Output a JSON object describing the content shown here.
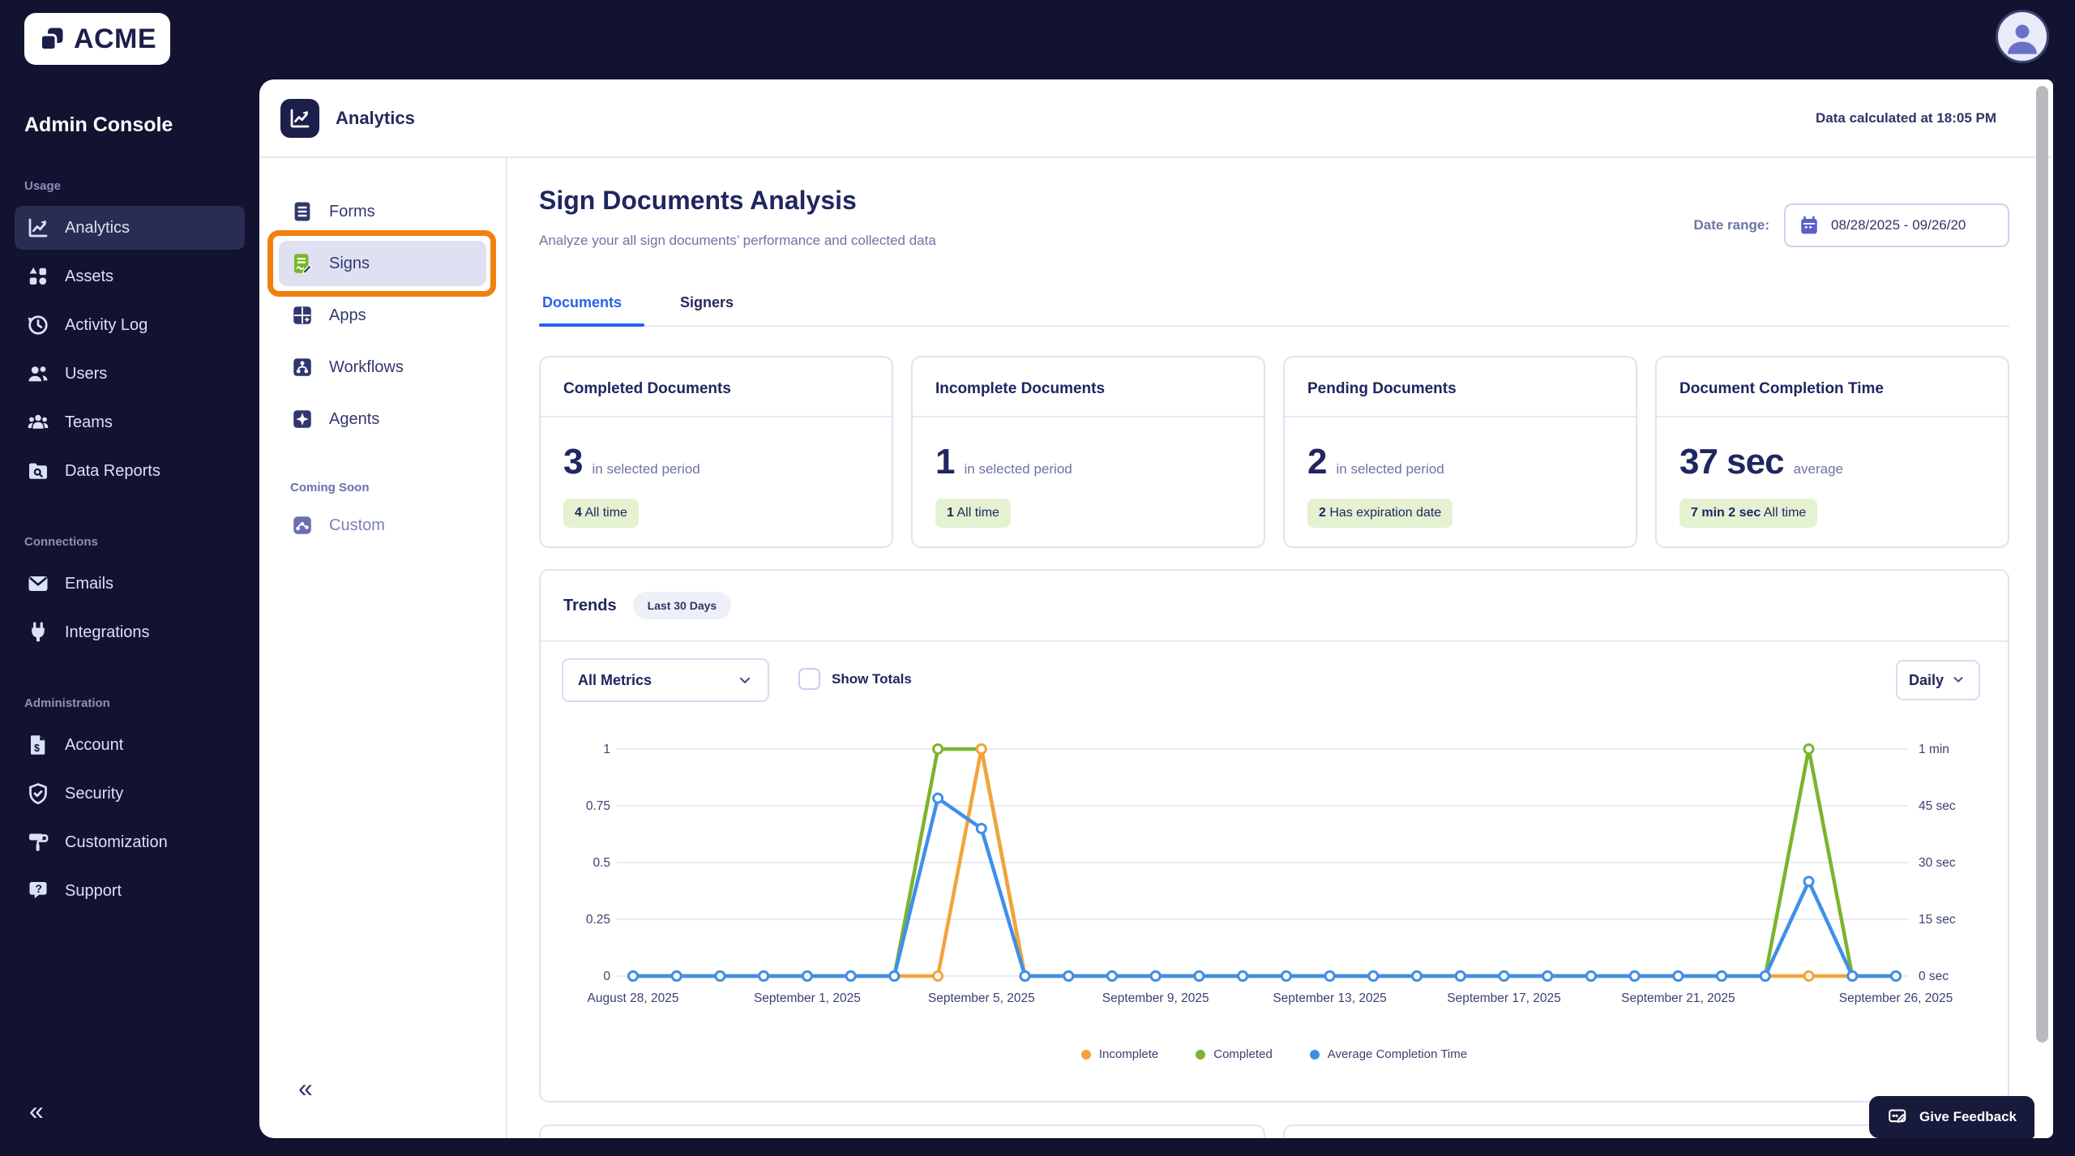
{
  "brand": {
    "name": "ACME"
  },
  "sidebar": {
    "title": "Admin Console",
    "collapse_glyph": "«",
    "sections": [
      {
        "label": "Usage",
        "items": [
          {
            "label": "Analytics",
            "icon": "line-chart",
            "active": true
          },
          {
            "label": "Assets",
            "icon": "shapes"
          },
          {
            "label": "Activity Log",
            "icon": "history-clock"
          },
          {
            "label": "Users",
            "icon": "users"
          },
          {
            "label": "Teams",
            "icon": "team"
          },
          {
            "label": "Data Reports",
            "icon": "folder-search"
          }
        ]
      },
      {
        "label": "Connections",
        "items": [
          {
            "label": "Emails",
            "icon": "envelope"
          },
          {
            "label": "Integrations",
            "icon": "plug"
          }
        ]
      },
      {
        "label": "Administration",
        "items": [
          {
            "label": "Account",
            "icon": "invoice"
          },
          {
            "label": "Security",
            "icon": "shield-check"
          },
          {
            "label": "Customization",
            "icon": "paint-roller"
          },
          {
            "label": "Support",
            "icon": "chat-question"
          }
        ]
      }
    ]
  },
  "window": {
    "header": {
      "title": "Analytics",
      "status": "Data calculated at 18:05 PM"
    },
    "subnav": {
      "items": [
        {
          "label": "Forms"
        },
        {
          "label": "Signs",
          "selected": true,
          "annotated": true
        },
        {
          "label": "Apps"
        },
        {
          "label": "Workflows"
        },
        {
          "label": "Agents"
        }
      ],
      "coming_soon_label": "Coming Soon",
      "coming_soon_items": [
        {
          "label": "Custom"
        }
      ],
      "collapse_glyph": "«"
    }
  },
  "page": {
    "title": "Sign Documents Analysis",
    "subtitle": "Analyze your all sign documents’ performance and collected data",
    "date_range": {
      "label": "Date range:",
      "value": "08/28/2025 - 09/26/20"
    },
    "tabs": [
      {
        "label": "Documents",
        "active": true
      },
      {
        "label": "Signers"
      }
    ]
  },
  "stats": [
    {
      "title": "Completed Documents",
      "value": "3",
      "suffix": "in selected period",
      "badge_strong": "4",
      "badge_rest": "All time"
    },
    {
      "title": "Incomplete Documents",
      "value": "1",
      "suffix": "in selected period",
      "badge_strong": "1",
      "badge_rest": "All time"
    },
    {
      "title": "Pending Documents",
      "value": "2",
      "suffix": "in selected period",
      "badge_strong": "2",
      "badge_rest": "Has expiration date"
    },
    {
      "title": "Document Completion Time",
      "value": "37 sec",
      "suffix": "average",
      "badge_strong": "7 min 2 sec",
      "badge_rest": "All time"
    }
  ],
  "trends": {
    "title": "Trends",
    "period_pill": "Last 30 Days",
    "metric_select": "All Metrics",
    "show_totals": "Show Totals",
    "interval_select": "Daily"
  },
  "chart_data": {
    "type": "line",
    "interval": "Daily",
    "point_count": 30,
    "x_start": "August 28, 2025",
    "x_end": "September 26, 2025",
    "x_ticks": [
      {
        "index": 0,
        "label": "August 28, 2025"
      },
      {
        "index": 4,
        "label": "September 1, 2025"
      },
      {
        "index": 8,
        "label": "September 5, 2025"
      },
      {
        "index": 12,
        "label": "September 9, 2025"
      },
      {
        "index": 16,
        "label": "September 13, 2025"
      },
      {
        "index": 20,
        "label": "September 17, 2025"
      },
      {
        "index": 24,
        "label": "September 21, 2025"
      },
      {
        "index": 29,
        "label": "September 26, 2025"
      }
    ],
    "left_axis": {
      "tick_labels": [
        "0",
        "0.25",
        "0.5",
        "0.75",
        "1"
      ],
      "range": [
        0,
        1
      ]
    },
    "right_axis": {
      "tick_labels": [
        "0 sec",
        "15 sec",
        "30 sec",
        "45 sec",
        "1 min"
      ],
      "range_seconds": [
        0,
        60
      ]
    },
    "series": [
      {
        "name": "Incomplete",
        "color": "#f2a43b",
        "axis": "left",
        "values": [
          0,
          0,
          0,
          0,
          0,
          0,
          0,
          0,
          1,
          0,
          0,
          0,
          0,
          0,
          0,
          0,
          0,
          0,
          0,
          0,
          0,
          0,
          0,
          0,
          0,
          0,
          0,
          0,
          0,
          0
        ]
      },
      {
        "name": "Completed",
        "color": "#7cb42d",
        "axis": "left",
        "values": [
          0,
          0,
          0,
          0,
          0,
          0,
          0,
          1,
          1,
          0,
          0,
          0,
          0,
          0,
          0,
          0,
          0,
          0,
          0,
          0,
          0,
          0,
          0,
          0,
          0,
          0,
          0,
          1,
          0,
          0
        ]
      },
      {
        "name": "Average Completion Time",
        "color": "#3f8fe9",
        "axis": "right",
        "values_seconds": [
          0,
          0,
          0,
          0,
          0,
          0,
          0,
          47,
          39,
          0,
          0,
          0,
          0,
          0,
          0,
          0,
          0,
          0,
          0,
          0,
          0,
          0,
          0,
          0,
          0,
          0,
          0,
          25,
          0,
          0
        ]
      }
    ],
    "draw_order": [
      1,
      0,
      2
    ],
    "legend": [
      "Incomplete",
      "Completed",
      "Average Completion Time"
    ],
    "grid": "horizontal"
  },
  "feedback": {
    "label": "Give Feedback"
  },
  "colors": {
    "accent_blue": "#2563eb",
    "navy": "#1f2660",
    "muted": "#6d74a3",
    "badge_bg": "#e5f2d2",
    "annotation_orange": "#f08010",
    "series_orange": "#f2a43b",
    "series_green": "#7cb42d",
    "series_blue": "#3f8fe9",
    "app_background": "#111331"
  }
}
